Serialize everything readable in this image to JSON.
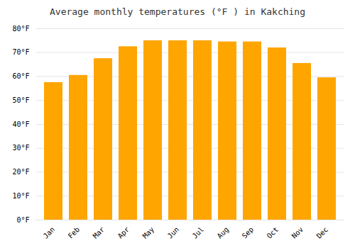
{
  "chart_data": {
    "type": "bar",
    "title": "Average monthly temperatures (°F ) in Kakching",
    "categories": [
      "Jan",
      "Feb",
      "Mar",
      "Apr",
      "May",
      "Jun",
      "Jul",
      "Aug",
      "Sep",
      "Oct",
      "Nov",
      "Dec"
    ],
    "values": [
      57.5,
      60.5,
      67.5,
      72.5,
      75,
      75,
      75,
      74.5,
      74.5,
      72,
      65.5,
      59.5
    ],
    "color": "#FFA500",
    "ylim": [
      0,
      80
    ],
    "yticks": [
      {
        "value": 0,
        "label": "0°F"
      },
      {
        "value": 10,
        "label": "10°F"
      },
      {
        "value": 20,
        "label": "20°F"
      },
      {
        "value": 30,
        "label": "30°F"
      },
      {
        "value": 40,
        "label": "40°F"
      },
      {
        "value": 50,
        "label": "50°F"
      },
      {
        "value": 60,
        "label": "60°F"
      },
      {
        "value": 70,
        "label": "70°F"
      },
      {
        "value": 80,
        "label": "80°F"
      }
    ],
    "grid": true
  }
}
